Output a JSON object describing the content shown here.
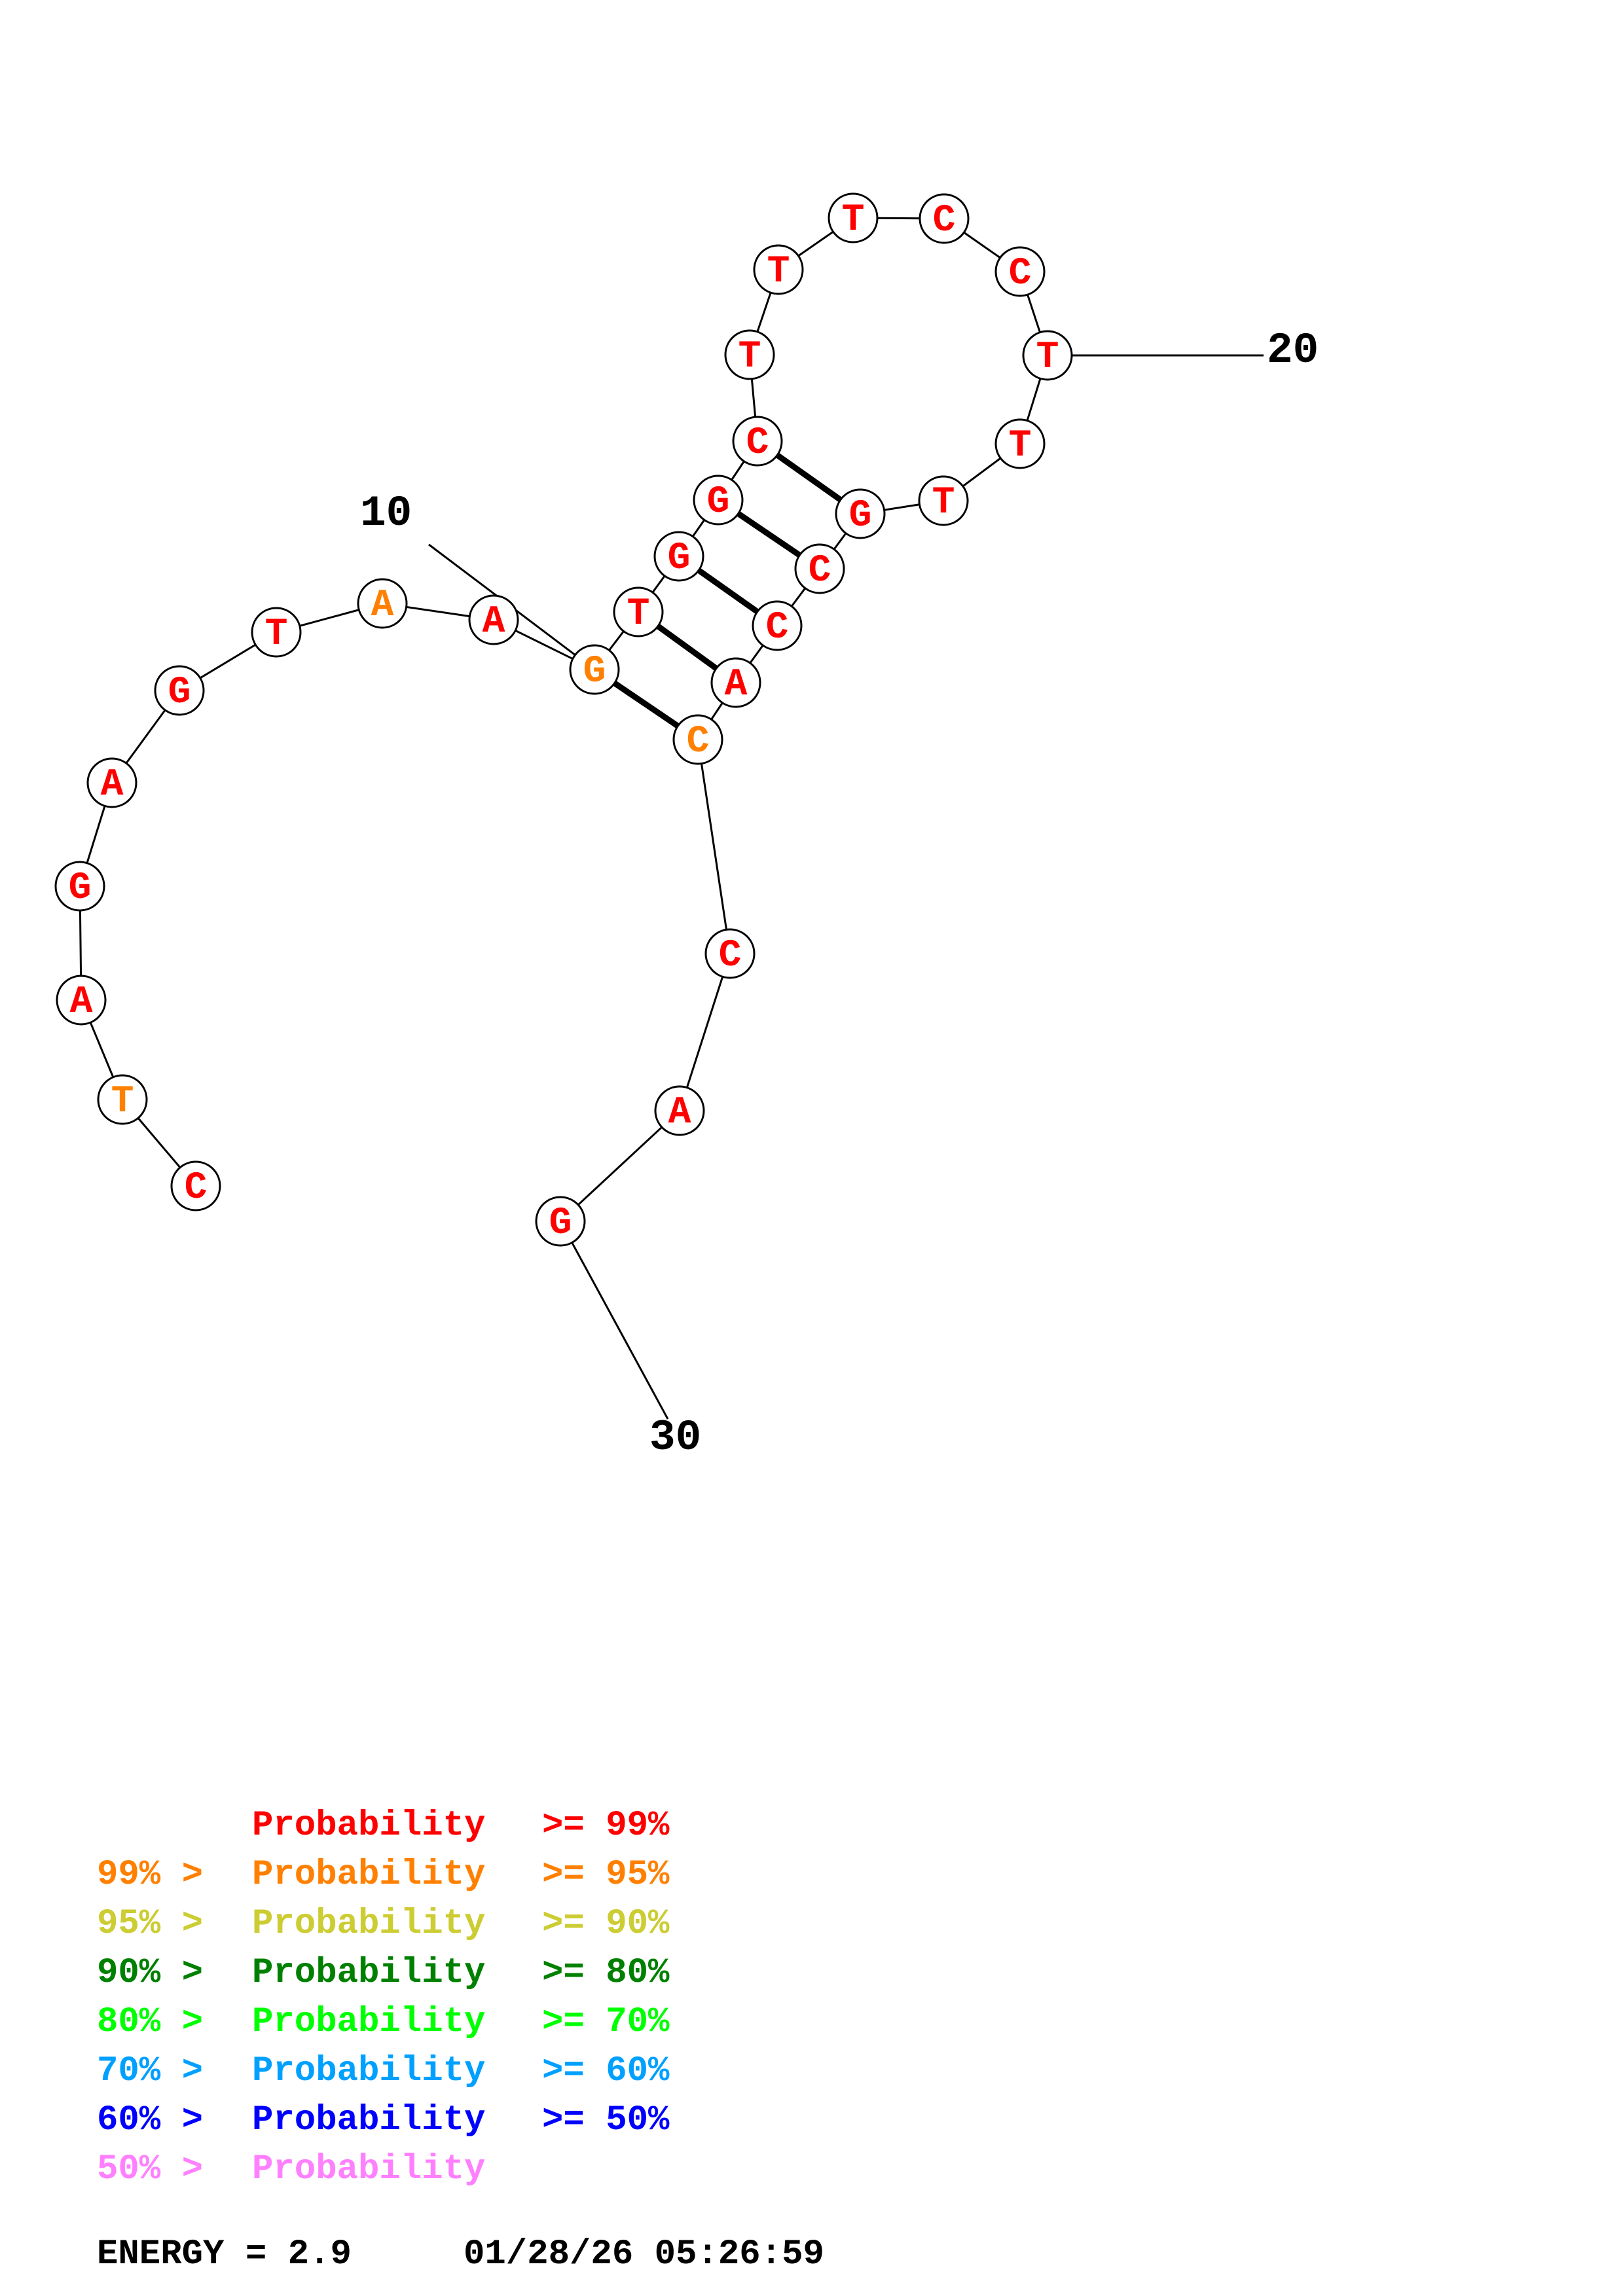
{
  "structure": {
    "nucleotides": [
      {
        "n": 1,
        "base": "C",
        "color": "#ff0000"
      },
      {
        "n": 2,
        "base": "T",
        "color": "#ff8000"
      },
      {
        "n": 3,
        "base": "A",
        "color": "#ff0000"
      },
      {
        "n": 4,
        "base": "G",
        "color": "#ff0000"
      },
      {
        "n": 5,
        "base": "A",
        "color": "#ff0000"
      },
      {
        "n": 6,
        "base": "G",
        "color": "#ff0000"
      },
      {
        "n": 7,
        "base": "T",
        "color": "#ff0000"
      },
      {
        "n": 8,
        "base": "A",
        "color": "#ff8000"
      },
      {
        "n": 9,
        "base": "A",
        "color": "#ff0000"
      },
      {
        "n": 10,
        "base": "G",
        "color": "#ff8000"
      },
      {
        "n": 11,
        "base": "T",
        "color": "#ff0000"
      },
      {
        "n": 12,
        "base": "G",
        "color": "#ff0000"
      },
      {
        "n": 13,
        "base": "G",
        "color": "#ff0000"
      },
      {
        "n": 14,
        "base": "C",
        "color": "#ff0000"
      },
      {
        "n": 15,
        "base": "T",
        "color": "#ff0000"
      },
      {
        "n": 16,
        "base": "T",
        "color": "#ff0000"
      },
      {
        "n": 17,
        "base": "T",
        "color": "#ff0000"
      },
      {
        "n": 18,
        "base": "C",
        "color": "#ff0000"
      },
      {
        "n": 19,
        "base": "C",
        "color": "#ff0000"
      },
      {
        "n": 20,
        "base": "T",
        "color": "#ff0000"
      },
      {
        "n": 21,
        "base": "T",
        "color": "#ff0000"
      },
      {
        "n": 22,
        "base": "T",
        "color": "#ff0000"
      },
      {
        "n": 23,
        "base": "G",
        "color": "#ff0000"
      },
      {
        "n": 24,
        "base": "C",
        "color": "#ff0000"
      },
      {
        "n": 25,
        "base": "C",
        "color": "#ff0000"
      },
      {
        "n": 26,
        "base": "A",
        "color": "#ff0000"
      },
      {
        "n": 27,
        "base": "C",
        "color": "#ff8000"
      },
      {
        "n": 28,
        "base": "C",
        "color": "#ff0000"
      },
      {
        "n": 29,
        "base": "A",
        "color": "#ff0000"
      },
      {
        "n": 30,
        "base": "G",
        "color": "#ff0000"
      }
    ],
    "pairs": [
      [
        10,
        27
      ],
      [
        11,
        26
      ],
      [
        12,
        25
      ],
      [
        13,
        24
      ],
      [
        14,
        23
      ]
    ],
    "position_labels": [
      {
        "n": 10,
        "text": "10"
      },
      {
        "n": 20,
        "text": "20"
      },
      {
        "n": 30,
        "text": "30"
      }
    ]
  },
  "legend": [
    {
      "prefix": "",
      "label": "Probability",
      "suffix": ">= 99%",
      "color": "#ff0000"
    },
    {
      "prefix": "99% >",
      "label": "Probability",
      "suffix": ">= 95%",
      "color": "#ff8000"
    },
    {
      "prefix": "95% >",
      "label": "Probability",
      "suffix": ">= 90%",
      "color": "#cccc33"
    },
    {
      "prefix": "90% >",
      "label": "Probability",
      "suffix": ">= 80%",
      "color": "#008000"
    },
    {
      "prefix": "80% >",
      "label": "Probability",
      "suffix": ">= 70%",
      "color": "#00ff00"
    },
    {
      "prefix": "70% >",
      "label": "Probability",
      "suffix": ">= 60%",
      "color": "#00a0ff"
    },
    {
      "prefix": "60% >",
      "label": "Probability",
      "suffix": ">= 50%",
      "color": "#0000ff"
    },
    {
      "prefix": "50% >",
      "label": "Probability",
      "suffix": "",
      "color": "#ff80ff"
    }
  ],
  "footer": {
    "energy_text": "ENERGY = 2.9",
    "timestamp": "01/28/26 05:26:59"
  }
}
